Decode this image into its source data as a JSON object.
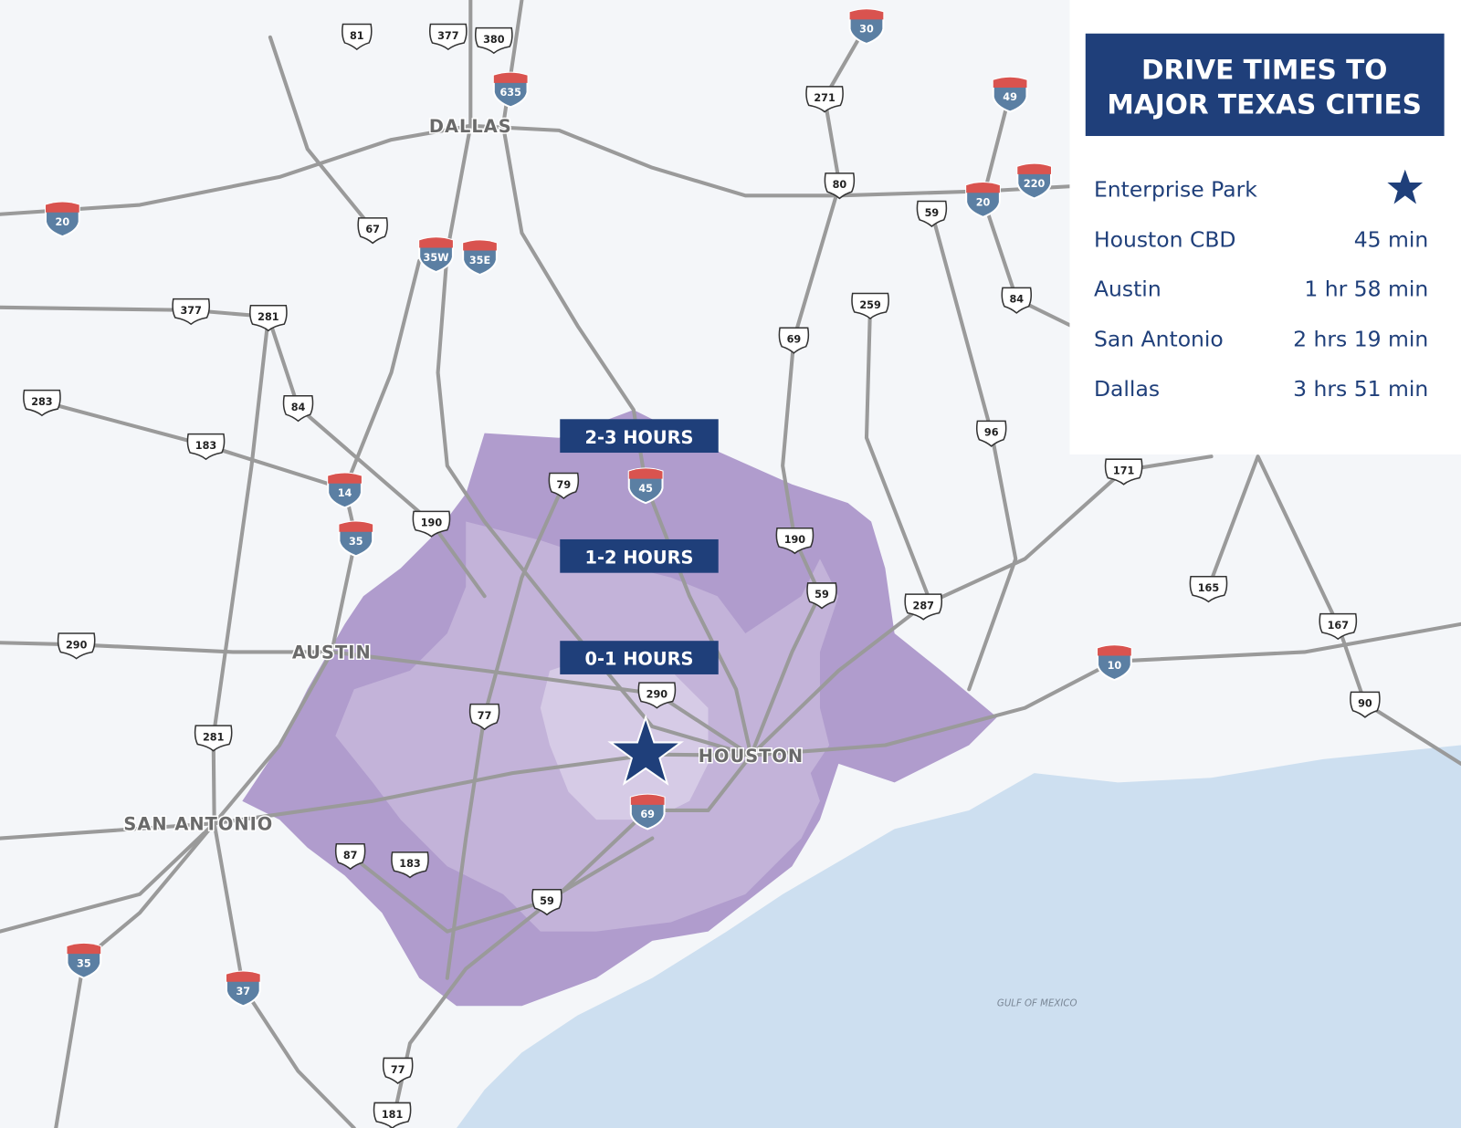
{
  "legend": {
    "title_line1": "DRIVE TIMES TO",
    "title_line2": "MAJOR TEXAS CITIES",
    "rows": [
      {
        "name": "Enterprise Park",
        "icon": "star-icon"
      },
      {
        "name": "Houston CBD",
        "time": "45 min"
      },
      {
        "name": "Austin",
        "time": "1 hr 58 min"
      },
      {
        "name": "San Antonio",
        "time": "2 hrs 19 min"
      },
      {
        "name": "Dallas",
        "time": "3 hrs 51 min"
      }
    ]
  },
  "zones": [
    {
      "label": "2-3 HOURS",
      "color": "#b09ccd"
    },
    {
      "label": "1-2 HOURS",
      "color": "#c3b3d9"
    },
    {
      "label": "0-1 HOURS",
      "color": "#d6cbe6"
    }
  ],
  "cities": [
    "DALLAS",
    "AUSTIN",
    "SAN ANTONIO",
    "HOUSTON"
  ],
  "water_label": "GULF OF MEXICO",
  "colors": {
    "navy": "#1f3f7a",
    "water": "#cddff0",
    "land": "#f4f6f9",
    "road": "#9a9a9a",
    "interstate_red": "#d9534f",
    "interstate_blue": "#5b7fa3"
  },
  "interstates": [
    "635",
    "30",
    "49",
    "20",
    "35W",
    "35E",
    "20",
    "220",
    "14",
    "35",
    "45",
    "69",
    "10",
    "35",
    "37"
  ],
  "us_routes": [
    "81",
    "377",
    "380",
    "271",
    "80",
    "67",
    "59",
    "377",
    "281",
    "259",
    "84",
    "69",
    "283",
    "84",
    "183",
    "96",
    "171",
    "79",
    "190",
    "190",
    "59",
    "287",
    "165",
    "167",
    "290",
    "290",
    "77",
    "90",
    "281",
    "87",
    "183",
    "59",
    "77",
    "181"
  ]
}
